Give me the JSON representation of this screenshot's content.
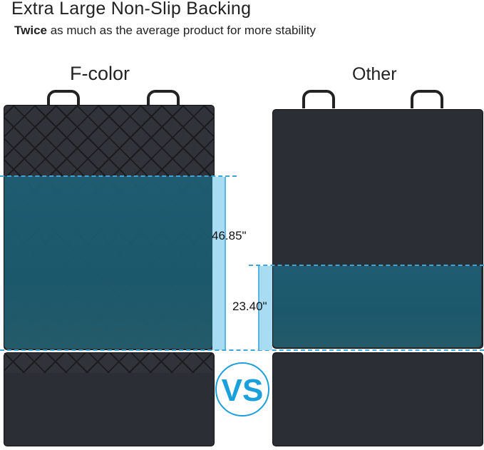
{
  "heading": "Extra Large Non-Slip Backing",
  "subheading": {
    "bold": "Twice",
    "rest": " as much as the average product for more stability"
  },
  "left": {
    "label": "F-color",
    "measurement": "46.85\""
  },
  "right": {
    "label": "Other",
    "measurement": "23.40\""
  },
  "vs": "VS",
  "colors": {
    "accent": "#1ba0dc",
    "band": "#a8dcf2",
    "teal": "#1f5e74",
    "fabric": "#2b2f35"
  }
}
